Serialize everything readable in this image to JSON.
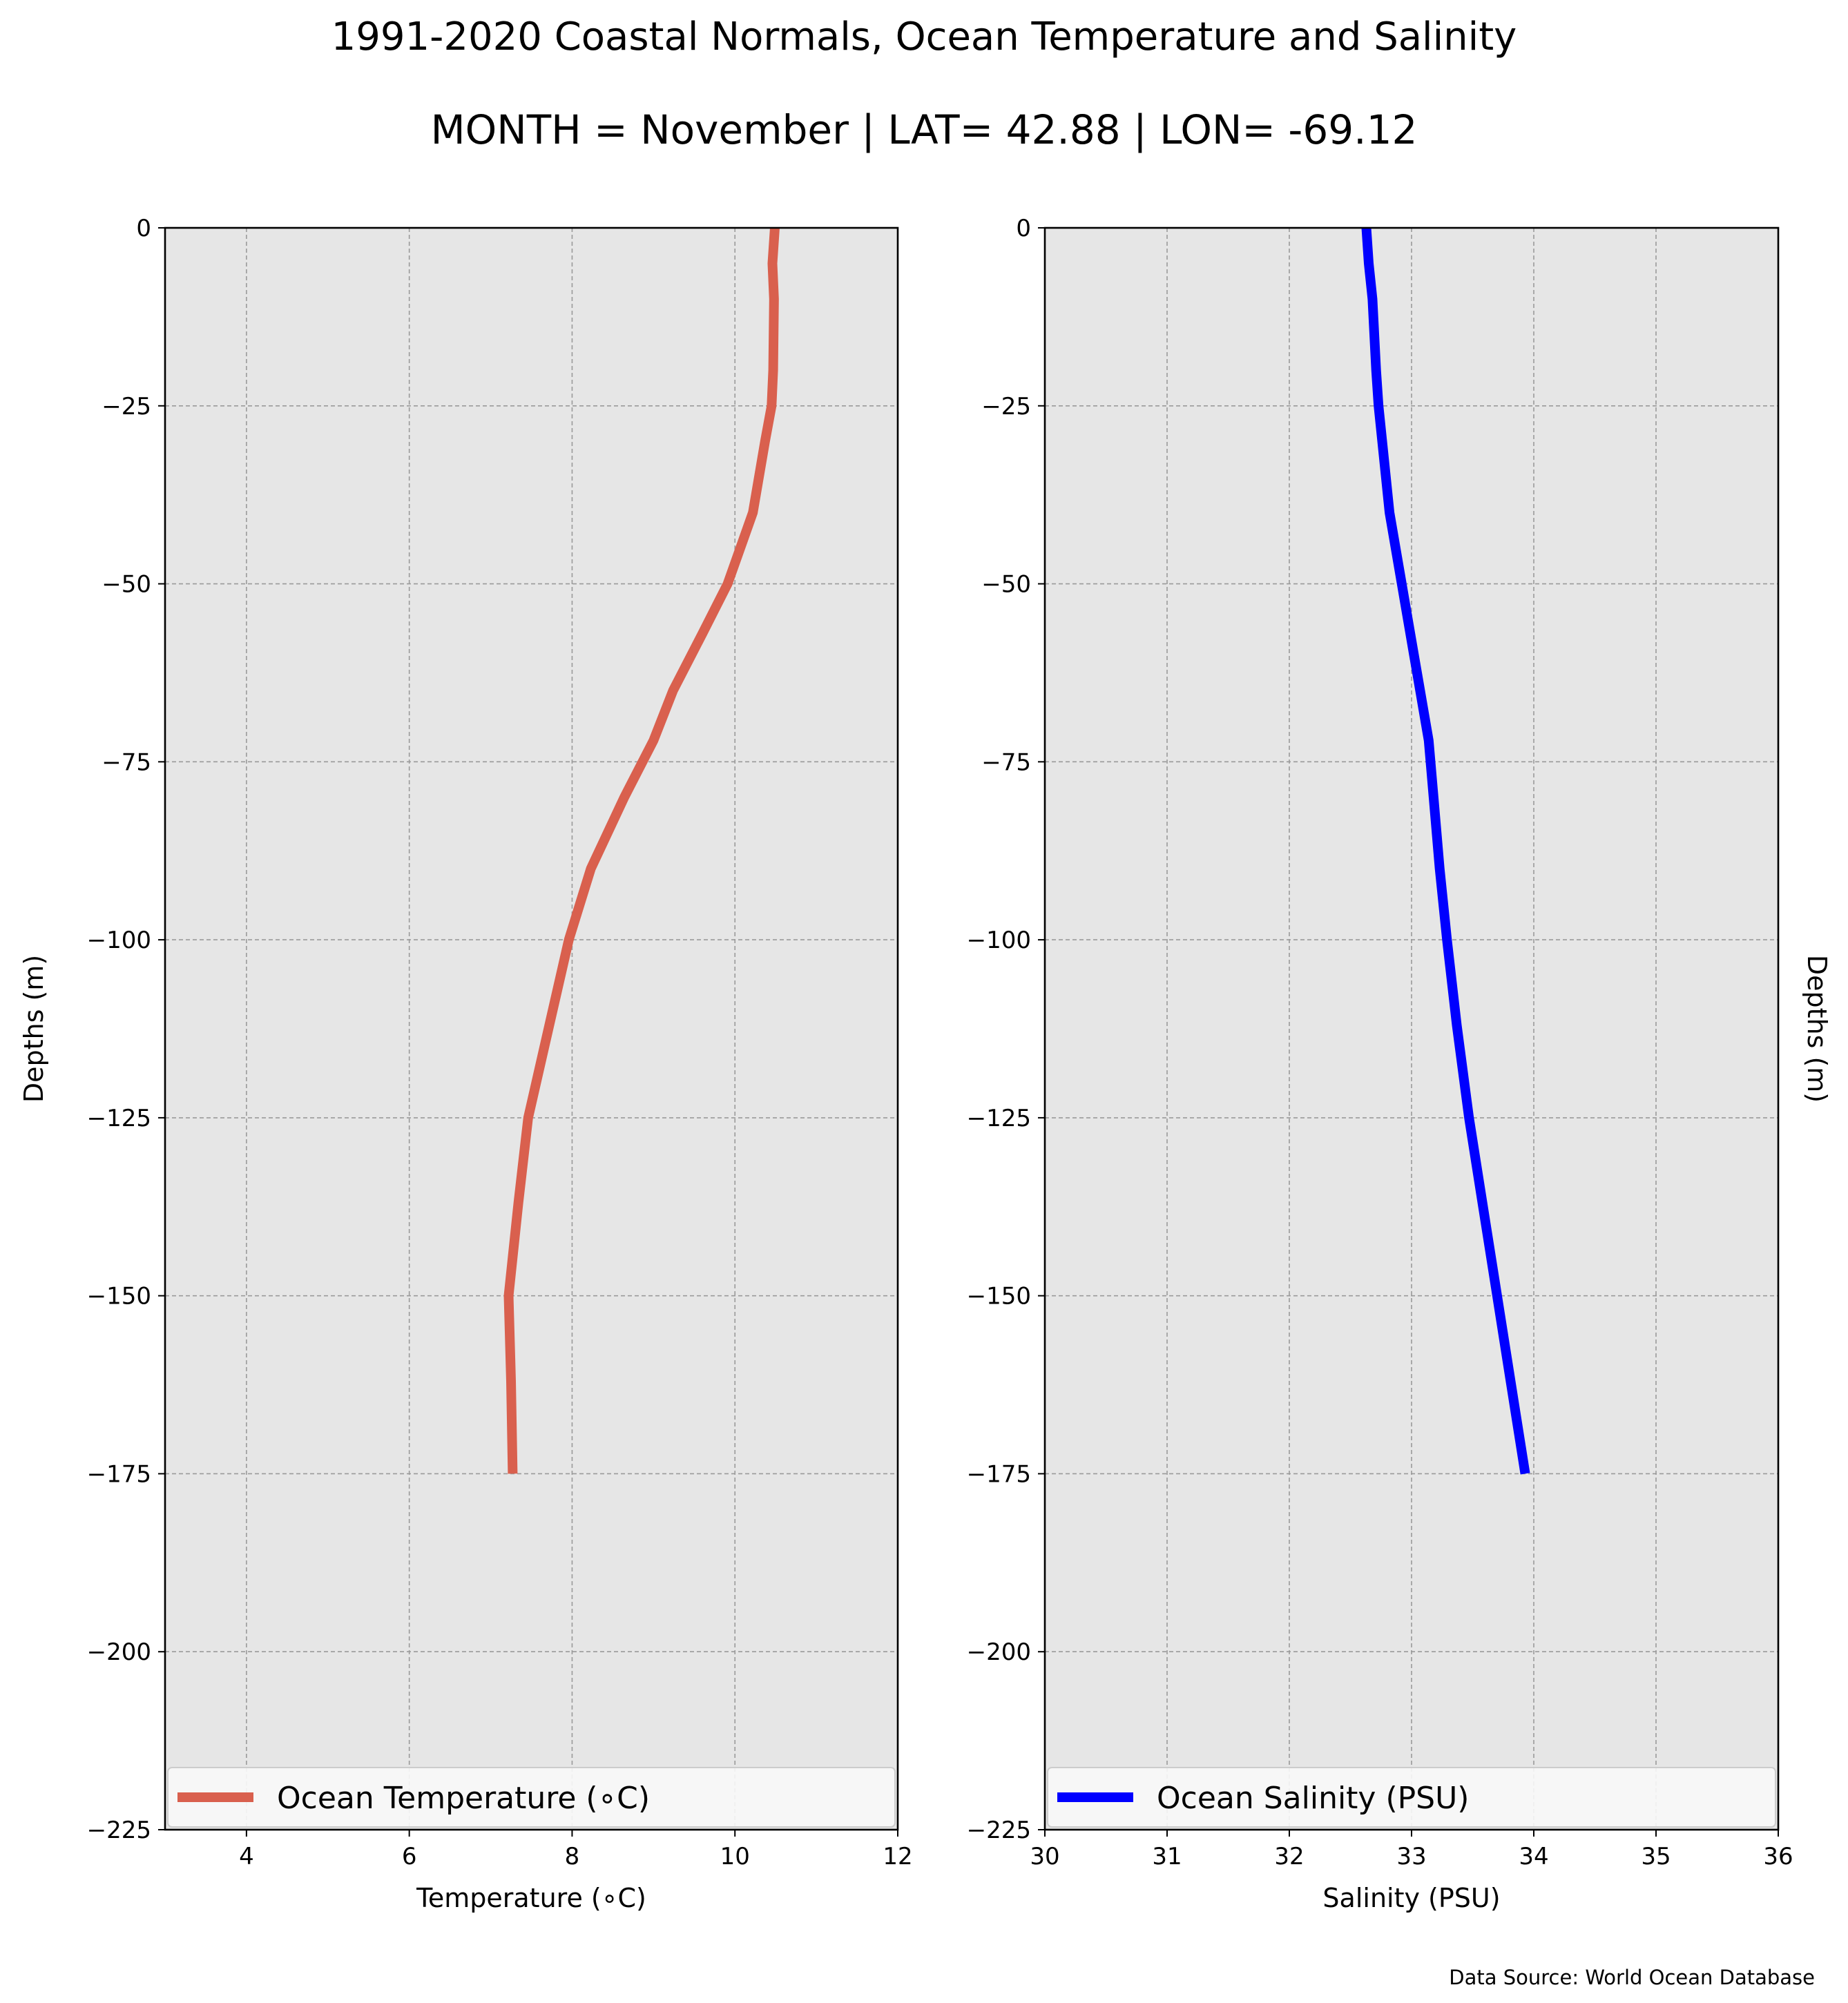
{
  "figure": {
    "title": "1991-2020 Coastal Normals, Ocean Temperature and Salinity",
    "subtitle": "MONTH = November | LAT= 42.88 | LON= -69.12",
    "source": "Data Source: World Ocean Database"
  },
  "chart_data": [
    {
      "type": "line",
      "xlabel": "Temperature (∘C)",
      "ylabel": "Depths (m)",
      "xlim": [
        3,
        12
      ],
      "ylim": [
        -225,
        0
      ],
      "xticks": [
        4,
        6,
        8,
        10,
        12
      ],
      "xtick_labels": [
        "4",
        "6",
        "8",
        "10",
        "12"
      ],
      "yticks": [
        0,
        -25,
        -50,
        -75,
        -100,
        -125,
        -150,
        -175,
        -200,
        -225
      ],
      "ytick_labels": [
        "0",
        "−25",
        "−50",
        "−75",
        "−100",
        "−125",
        "−150",
        "−175",
        "−200",
        "−225"
      ],
      "ylabel_side": "left",
      "grid": true,
      "legend_placement": "bottom",
      "series": [
        {
          "name": "Ocean Temperature (∘C)",
          "color": "#d9604e",
          "x": [
            10.49,
            10.46,
            10.48,
            10.47,
            10.45,
            10.37,
            10.22,
            9.91,
            9.6,
            9.24,
            9.0,
            8.64,
            8.23,
            7.96,
            7.72,
            7.46,
            7.34,
            7.22,
            7.25,
            7.27
          ],
          "y": [
            0,
            -5,
            -10,
            -20,
            -25,
            -30,
            -40,
            -50,
            -57,
            -65,
            -72,
            -80,
            -90,
            -100,
            -112,
            -125,
            -137,
            -150,
            -162,
            -175
          ]
        }
      ]
    },
    {
      "type": "line",
      "xlabel": "Salinity (PSU)",
      "ylabel": "Depths (m)",
      "xlim": [
        30,
        36
      ],
      "ylim": [
        -225,
        0
      ],
      "xticks": [
        30,
        31,
        32,
        33,
        34,
        35,
        36
      ],
      "xtick_labels": [
        "30",
        "31",
        "32",
        "33",
        "34",
        "35",
        "36"
      ],
      "yticks": [
        0,
        -25,
        -50,
        -75,
        -100,
        -125,
        -150,
        -175,
        -200,
        -225
      ],
      "ytick_labels": [
        "0",
        "−25",
        "−50",
        "−75",
        "−100",
        "−125",
        "−150",
        "−175",
        "−200",
        "−225"
      ],
      "ylabel_side": "right",
      "grid": true,
      "legend_placement": "bottom",
      "series": [
        {
          "name": "Ocean Salinity (PSU)",
          "color": "#0000ff",
          "x": [
            32.63,
            32.65,
            32.68,
            32.71,
            32.73,
            32.76,
            32.82,
            32.92,
            33.02,
            33.07,
            33.14,
            33.18,
            33.23,
            33.29,
            33.37,
            33.47,
            33.58,
            33.7,
            33.81,
            33.93
          ],
          "y": [
            0,
            -5,
            -10,
            -20,
            -25,
            -30,
            -40,
            -50,
            -60,
            -65,
            -72,
            -80,
            -90,
            -100,
            -112,
            -125,
            -137,
            -150,
            -162,
            -175
          ]
        }
      ]
    }
  ]
}
